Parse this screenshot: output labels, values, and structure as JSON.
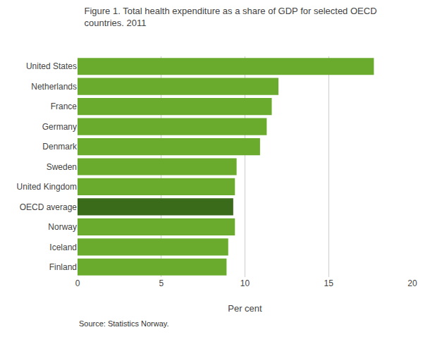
{
  "chart_data": {
    "type": "bar",
    "orientation": "horizontal",
    "title": "Figure 1. Total health expenditure as a share of GDP for selected OECD\ncountries. 2011",
    "categories": [
      "Finland",
      "Iceland",
      "Norway",
      "OECD average",
      "United Kingdom",
      "Sweden",
      "Denmark",
      "Germany",
      "France",
      "Netherlands",
      "United States"
    ],
    "values": [
      8.9,
      9.0,
      9.4,
      9.3,
      9.4,
      9.5,
      10.9,
      11.3,
      11.6,
      12.0,
      17.7
    ],
    "colors": [
      "#6aab2e",
      "#6aab2e",
      "#6aab2e",
      "#3a6b1a",
      "#6aab2e",
      "#6aab2e",
      "#6aab2e",
      "#6aab2e",
      "#6aab2e",
      "#6aab2e",
      "#6aab2e"
    ],
    "xlabel": "Per cent",
    "xlim": [
      0,
      20
    ],
    "xticks": [
      0,
      5,
      10,
      15,
      20
    ],
    "grid": true,
    "source": "Source: Statistics Norway."
  }
}
